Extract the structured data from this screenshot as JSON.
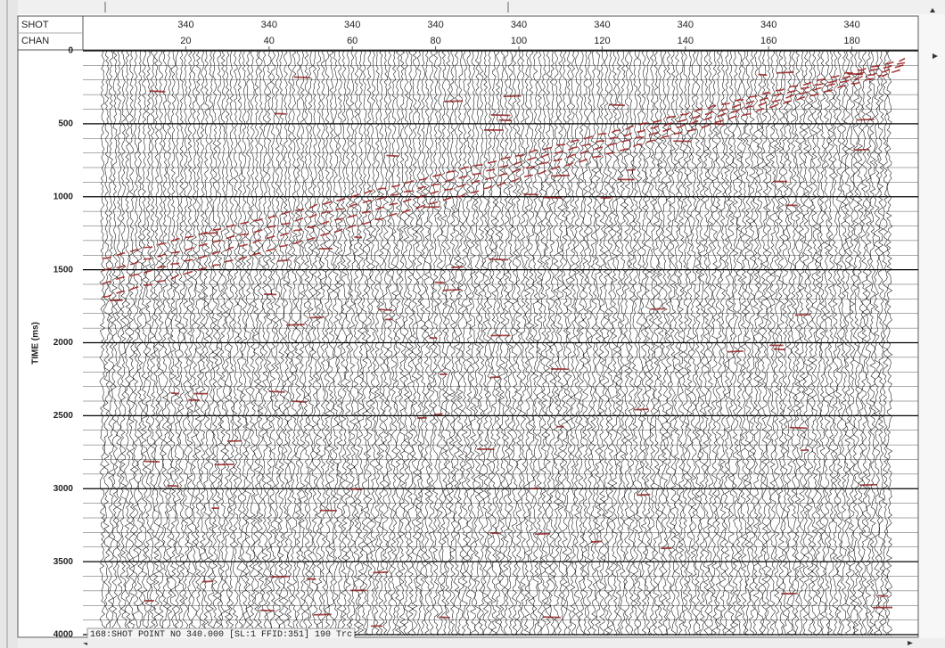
{
  "header": {
    "shot_label": "SHOT",
    "chan_label": "CHAN",
    "shot_values": [
      340,
      340,
      340,
      340,
      340,
      340,
      340,
      340,
      340
    ],
    "chan_values": [
      20,
      40,
      60,
      80,
      100,
      120,
      140,
      160,
      180
    ]
  },
  "time_axis": {
    "label": "TIME (ms)",
    "ticks": [
      0,
      500,
      1000,
      1500,
      2000,
      2500,
      3000,
      3500,
      4000
    ]
  },
  "status": "168:SHOT POINT NO 340.000 [SL:1 FFID:351] 190 Trc:"
}
